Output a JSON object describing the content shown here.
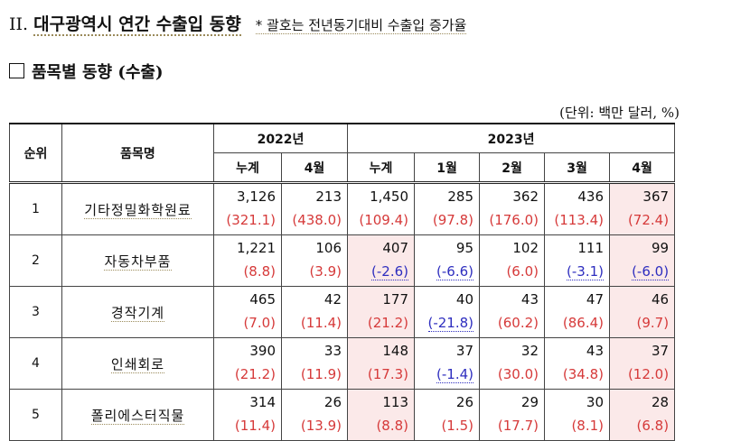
{
  "heading": {
    "roman": "II.",
    "title": "대구광역시 연간 수출입 동향",
    "note": "* 괄호는 전년동기대비 수출입 증가율"
  },
  "subheading": "품목별 동향 (수출)",
  "unit": "(단위: 백만 달러, %)",
  "table": {
    "col_rank": "순위",
    "col_name": "품목명",
    "group_2022": "2022년",
    "group_2023": "2023년",
    "sub_2022": [
      "누계",
      "4월"
    ],
    "sub_2023": [
      "누계",
      "1월",
      "2월",
      "3월",
      "4월"
    ],
    "rows": [
      {
        "rank": "1",
        "name": "기타정밀화학원료",
        "values": [
          "3,126",
          "213",
          "1,450",
          "285",
          "362",
          "436",
          "367"
        ],
        "changes": [
          "(321.1)",
          "(438.0)",
          "(109.4)",
          "(97.8)",
          "(176.0)",
          "(113.4)",
          "(72.4)"
        ],
        "signs": [
          "pos",
          "pos",
          "pos",
          "pos",
          "pos",
          "pos",
          "pos"
        ]
      },
      {
        "rank": "2",
        "name": "자동차부품",
        "values": [
          "1,221",
          "106",
          "407",
          "95",
          "102",
          "111",
          "99"
        ],
        "changes": [
          "(8.8)",
          "(3.9)",
          "(-2.6)",
          "(-6.6)",
          "(6.0)",
          "(-3.1)",
          "(-6.0)"
        ],
        "signs": [
          "pos",
          "pos",
          "neg",
          "neg",
          "pos",
          "neg",
          "neg"
        ]
      },
      {
        "rank": "3",
        "name": "경작기계",
        "values": [
          "465",
          "42",
          "177",
          "40",
          "43",
          "47",
          "46"
        ],
        "changes": [
          "(7.0)",
          "(11.4)",
          "(21.2)",
          "(-21.8)",
          "(60.2)",
          "(86.4)",
          "(9.7)"
        ],
        "signs": [
          "pos",
          "pos",
          "pos",
          "neg",
          "pos",
          "pos",
          "pos"
        ]
      },
      {
        "rank": "4",
        "name": "인쇄회로",
        "values": [
          "390",
          "33",
          "148",
          "37",
          "32",
          "43",
          "37"
        ],
        "changes": [
          "(21.2)",
          "(11.9)",
          "(17.3)",
          "(-1.4)",
          "(30.0)",
          "(34.8)",
          "(12.0)"
        ],
        "signs": [
          "pos",
          "pos",
          "pos",
          "neg",
          "pos",
          "pos",
          "pos"
        ]
      },
      {
        "rank": "5",
        "name": "폴리에스터직물",
        "values": [
          "314",
          "26",
          "113",
          "26",
          "29",
          "30",
          "28"
        ],
        "changes": [
          "(11.4)",
          "(13.9)",
          "(8.8)",
          "(1.5)",
          "(17.7)",
          "(8.1)",
          "(6.8)"
        ],
        "signs": [
          "pos",
          "pos",
          "pos",
          "pos",
          "pos",
          "pos",
          "pos"
        ]
      }
    ]
  },
  "colors": {
    "positive": "#d63a3a",
    "negative": "#2e2ebf",
    "highlight": "#fbe9e9"
  }
}
